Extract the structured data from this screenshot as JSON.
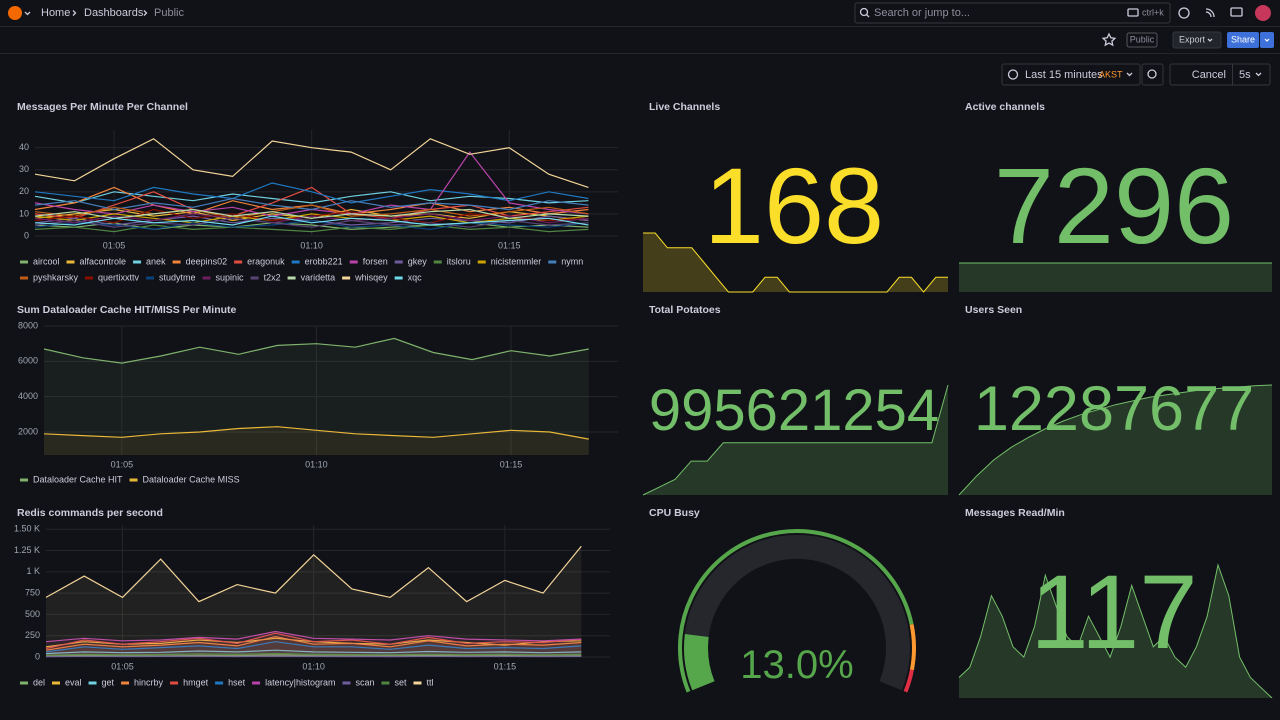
{
  "nav": {
    "breadcrumbs": [
      "Home",
      "Dashboards",
      "Public"
    ],
    "search_placeholder": "Search or jump to...",
    "search_shortcut": "ctrl+k"
  },
  "toolbar": {
    "public_badge": "Public",
    "export": "Export",
    "share": "Share"
  },
  "time_controls": {
    "range": "Last 15 minutes",
    "timezone": "AKST",
    "cancel": "Cancel",
    "refresh": "5s"
  },
  "chart_data": [
    {
      "type": "line",
      "title": "Messages Per Minute Per Channel",
      "x": [
        3,
        4,
        5,
        6,
        7,
        8,
        9,
        10,
        11,
        12,
        13,
        14,
        15,
        16,
        17
      ],
      "xlim": [
        3,
        17.75
      ],
      "xticks": [
        {
          "value": 5,
          "label": "01:05"
        },
        {
          "value": 10,
          "label": "01:10"
        },
        {
          "value": 15,
          "label": "01:15"
        }
      ],
      "ylim": [
        0,
        48
      ],
      "yticks": [
        0,
        10,
        20,
        30,
        40
      ],
      "grid": true,
      "fill": false,
      "series": [
        {
          "name": "aircool",
          "color": "#7eb26d",
          "values": [
            5,
            4,
            6,
            3,
            5,
            4,
            6,
            5,
            3,
            4,
            5,
            6,
            4,
            5,
            4
          ]
        },
        {
          "name": "alfacontrole",
          "color": "#eab839",
          "values": [
            8,
            10,
            12,
            9,
            11,
            7,
            10,
            8,
            12,
            9,
            10,
            8,
            11,
            9,
            7
          ]
        },
        {
          "name": "anek",
          "color": "#6ed0e0",
          "values": [
            18,
            15,
            20,
            18,
            16,
            19,
            17,
            15,
            18,
            20,
            16,
            18,
            17,
            15,
            16
          ]
        },
        {
          "name": "deepins02",
          "color": "#ef843c",
          "values": [
            12,
            15,
            22,
            14,
            10,
            16,
            12,
            14,
            10,
            12,
            15,
            11,
            13,
            10,
            12
          ]
        },
        {
          "name": "eragonuk",
          "color": "#e24d42",
          "values": [
            10,
            8,
            14,
            20,
            12,
            9,
            15,
            22,
            10,
            8,
            12,
            14,
            9,
            11,
            13
          ]
        },
        {
          "name": "erobb221",
          "color": "#1f78c1",
          "values": [
            20,
            18,
            16,
            22,
            19,
            17,
            24,
            20,
            15,
            18,
            21,
            19,
            16,
            20,
            17
          ]
        },
        {
          "name": "forsen",
          "color": "#ba43a9",
          "values": [
            15,
            12,
            10,
            14,
            11,
            13,
            9,
            12,
            10,
            14,
            12,
            38,
            15,
            12,
            10
          ]
        },
        {
          "name": "gkey",
          "color": "#705da0",
          "values": [
            6,
            8,
            5,
            7,
            9,
            6,
            8,
            7,
            5,
            6,
            8,
            7,
            6,
            9,
            7
          ]
        },
        {
          "name": "itsloru",
          "color": "#508642",
          "values": [
            3,
            4,
            2,
            5,
            3,
            4,
            3,
            2,
            4,
            3,
            5,
            3,
            4,
            2,
            3
          ]
        },
        {
          "name": "nicistemmler",
          "color": "#cca300",
          "values": [
            9,
            7,
            10,
            8,
            6,
            9,
            7,
            10,
            8,
            7,
            9,
            6,
            8,
            7,
            9
          ]
        },
        {
          "name": "nymn",
          "color": "#447ebc",
          "values": [
            14,
            16,
            12,
            15,
            13,
            17,
            14,
            12,
            16,
            13,
            15,
            14,
            12,
            16,
            14
          ]
        },
        {
          "name": "pyshkarsky",
          "color": "#c15c17",
          "values": [
            11,
            9,
            13,
            10,
            12,
            8,
            11,
            14,
            9,
            10,
            12,
            9,
            11,
            13,
            10
          ]
        },
        {
          "name": "quertixxttv",
          "color": "#890f02",
          "values": [
            7,
            9,
            6,
            12,
            8,
            10,
            7,
            9,
            11,
            8,
            6,
            10,
            9,
            7,
            8
          ]
        },
        {
          "name": "studytme",
          "color": "#0a437c",
          "values": [
            4,
            6,
            5,
            3,
            6,
            4,
            5,
            7,
            4,
            5,
            3,
            6,
            5,
            4,
            6
          ]
        },
        {
          "name": "supinic",
          "color": "#6d1f62",
          "values": [
            8,
            6,
            9,
            7,
            10,
            8,
            6,
            9,
            7,
            8,
            10,
            7,
            9,
            6,
            8
          ]
        },
        {
          "name": "t2x2",
          "color": "#584477",
          "values": [
            5,
            7,
            4,
            6,
            5,
            8,
            6,
            4,
            7,
            5,
            6,
            4,
            7,
            5,
            6
          ]
        },
        {
          "name": "varidetta",
          "color": "#b7dbab",
          "values": [
            9,
            11,
            8,
            10,
            12,
            9,
            11,
            8,
            10,
            9,
            11,
            12,
            8,
            10,
            9
          ]
        },
        {
          "name": "whisqey",
          "color": "#f4d598",
          "values": [
            28,
            25,
            35,
            44,
            30,
            27,
            43,
            40,
            38,
            30,
            44,
            37,
            40,
            28,
            22
          ]
        },
        {
          "name": "xqc",
          "color": "#70dbed",
          "values": [
            6,
            5,
            8,
            6,
            7,
            5,
            9,
            6,
            8,
            7,
            5,
            6,
            7,
            8,
            5
          ]
        }
      ]
    },
    {
      "type": "stat",
      "title": "Live Channels",
      "value": 168,
      "color": "#fade2a",
      "sparkline": [
        172,
        172,
        171,
        171,
        171,
        170,
        169,
        168,
        168,
        168,
        169,
        169,
        168,
        168,
        168,
        168,
        168,
        168,
        168,
        168,
        168,
        169,
        169,
        168,
        169,
        169
      ]
    },
    {
      "type": "stat",
      "title": "Active channels",
      "value": 7296,
      "color": "#73bf69",
      "sparkline": [
        7296,
        7296,
        7296,
        7296,
        7296,
        7296,
        7296,
        7296,
        7296,
        7296
      ]
    },
    {
      "type": "line",
      "title": "Sum Dataloader Cache HIT/MISS Per Minute",
      "x": [
        3,
        4,
        5,
        6,
        7,
        8,
        9,
        10,
        11,
        12,
        13,
        14,
        15,
        16,
        17
      ],
      "xlim": [
        3,
        17.75
      ],
      "xticks": [
        {
          "value": 5,
          "label": "01:05"
        },
        {
          "value": 10,
          "label": "01:10"
        },
        {
          "value": 15,
          "label": "01:15"
        }
      ],
      "ylim": [
        700,
        8000
      ],
      "yticks": [
        2000,
        4000,
        6000,
        8000
      ],
      "grid": true,
      "fill": true,
      "series": [
        {
          "name": "Dataloader Cache HIT",
          "color": "#7eb26d",
          "values": [
            6700,
            6200,
            5900,
            6300,
            6800,
            6400,
            6900,
            7000,
            6800,
            7300,
            6500,
            6100,
            6600,
            6300,
            6700
          ]
        },
        {
          "name": "Dataloader Cache MISS",
          "color": "#eab839",
          "values": [
            1900,
            1800,
            1700,
            1900,
            2000,
            2200,
            2300,
            2100,
            1900,
            1800,
            1700,
            1900,
            2100,
            2000,
            1600
          ]
        }
      ]
    },
    {
      "type": "stat",
      "title": "Total Potatoes",
      "value": 995621254,
      "color": "#73bf69",
      "sparkline": [
        995200000,
        995230000,
        995260000,
        995330000,
        995330000,
        995400000,
        995400000,
        995400000,
        995400000,
        995400000,
        995400000,
        995400000,
        995400000,
        995400000,
        995400000,
        995400000,
        995400000,
        995400000,
        995400000,
        995621254
      ]
    },
    {
      "type": "stat",
      "title": "Users Seen",
      "value": 12287677,
      "color": "#73bf69",
      "sparkline": [
        12200000,
        12215000,
        12228000,
        12238000,
        12246000,
        12253000,
        12259000,
        12264000,
        12268000,
        12272000,
        12275000,
        12278000,
        12280000,
        12282000,
        12284000,
        12285000,
        12286000,
        12287000,
        12287677
      ]
    },
    {
      "type": "line",
      "title": "Redis commands per second",
      "x": [
        3,
        4,
        5,
        6,
        7,
        8,
        9,
        10,
        11,
        12,
        13,
        14,
        15,
        16,
        17
      ],
      "xlim": [
        3,
        17.75
      ],
      "xticks": [
        {
          "value": 5,
          "label": "01:05"
        },
        {
          "value": 10,
          "label": "01:10"
        },
        {
          "value": 15,
          "label": "01:15"
        }
      ],
      "ylim": [
        0,
        1550
      ],
      "yticks": [
        0,
        250,
        500,
        750,
        {
          "value": 1000,
          "label": "1 K"
        },
        {
          "value": 1250,
          "label": "1.25 K"
        },
        {
          "value": 1500,
          "label": "1.50 K"
        }
      ],
      "grid": true,
      "fill": true,
      "series": [
        {
          "name": "del",
          "color": "#7eb26d",
          "values": [
            10,
            20,
            15,
            12,
            18,
            15,
            25,
            15,
            14,
            12,
            20,
            14,
            16,
            12,
            15
          ]
        },
        {
          "name": "eval",
          "color": "#eab839",
          "values": [
            120,
            180,
            150,
            160,
            200,
            170,
            220,
            180,
            160,
            150,
            200,
            170,
            140,
            180,
            190
          ]
        },
        {
          "name": "get",
          "color": "#6ed0e0",
          "values": [
            40,
            60,
            50,
            55,
            70,
            60,
            80,
            60,
            55,
            50,
            65,
            55,
            60,
            50,
            60
          ]
        },
        {
          "name": "hincrby",
          "color": "#ef843c",
          "values": [
            80,
            150,
            120,
            140,
            170,
            130,
            240,
            150,
            160,
            120,
            190,
            130,
            150,
            140,
            170
          ]
        },
        {
          "name": "hmget",
          "color": "#e24d42",
          "values": [
            100,
            200,
            150,
            180,
            220,
            160,
            280,
            180,
            200,
            150,
            230,
            160,
            180,
            170,
            210
          ]
        },
        {
          "name": "hset",
          "color": "#1f78c1",
          "values": [
            60,
            120,
            90,
            110,
            130,
            100,
            180,
            120,
            120,
            90,
            140,
            100,
            110,
            100,
            130
          ]
        },
        {
          "name": "latency|histogram",
          "color": "#ba43a9",
          "values": [
            180,
            220,
            190,
            200,
            230,
            210,
            300,
            220,
            210,
            200,
            250,
            210,
            200,
            190,
            210
          ]
        },
        {
          "name": "scan",
          "color": "#705da0",
          "values": [
            5,
            8,
            6,
            7,
            9,
            6,
            10,
            7,
            6,
            5,
            8,
            6,
            7,
            6,
            7
          ]
        },
        {
          "name": "set",
          "color": "#508642",
          "values": [
            20,
            30,
            25,
            28,
            35,
            30,
            40,
            30,
            28,
            25,
            32,
            27,
            30,
            26,
            30
          ]
        },
        {
          "name": "ttl",
          "color": "#f4d598",
          "values": [
            700,
            950,
            700,
            1150,
            650,
            850,
            750,
            1200,
            800,
            700,
            1050,
            650,
            900,
            750,
            1300
          ]
        }
      ]
    },
    {
      "type": "gauge",
      "title": "CPU Busy",
      "value": 13.0,
      "value_label": "13.0%",
      "lim": [
        0,
        100
      ],
      "color": "#56a64b",
      "thresholds": [
        {
          "value": 0,
          "color": "#56a64b"
        },
        {
          "value": 85,
          "color": "#ff9830"
        },
        {
          "value": 95,
          "color": "#e02f44"
        }
      ]
    },
    {
      "type": "stat",
      "title": "Messages Read/Min",
      "value": 117,
      "color": "#73bf69",
      "sparkline": [
        40,
        45,
        60,
        80,
        70,
        55,
        50,
        65,
        90,
        75,
        60,
        55,
        70,
        60,
        50,
        65,
        85,
        70,
        55,
        60,
        50,
        45,
        55,
        70,
        95,
        80,
        50,
        40,
        35,
        30
      ]
    }
  ]
}
